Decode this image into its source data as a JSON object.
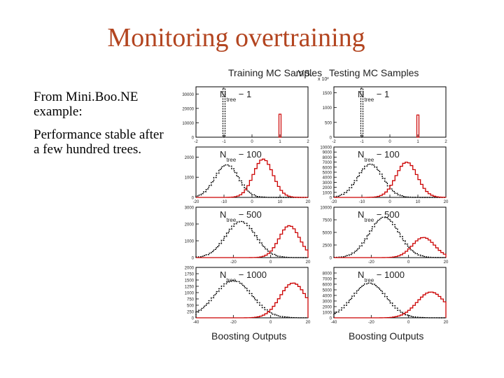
{
  "slide": {
    "title": "Monitoring overtraining",
    "bullets": [
      "From Mini.Boo.NE example:",
      "Performance stable after a few hundred trees."
    ]
  },
  "figure": {
    "left_header": "Training MC Samples",
    "vs_label": ".VS.",
    "right_header": "Testing MC Samples",
    "right_scale_label": "x 10²",
    "xlabel": "Boosting Outputs",
    "colors": {
      "signal": "#cc0000",
      "background": "#000000"
    }
  },
  "chart_data": [
    {
      "type": "bar",
      "title": "N_tree = 1",
      "panel": "training",
      "ntree": "1",
      "row": 0,
      "col": 0,
      "xlim": [
        -2,
        2
      ],
      "xticks": [
        "-2",
        "-1",
        "0",
        "1",
        "2"
      ],
      "ylim": [
        0,
        35000
      ],
      "yticks": [
        "0",
        "10000",
        "20000",
        "30000"
      ],
      "series": [
        {
          "name": "background",
          "kind": "spike",
          "x": -1,
          "height": 34000
        },
        {
          "name": "signal",
          "kind": "spike",
          "x": 1,
          "height": 16000
        }
      ]
    },
    {
      "type": "bar",
      "title": "N_tree = 1",
      "panel": "testing",
      "ntree": "1",
      "row": 0,
      "col": 1,
      "xlim": [
        -2,
        2
      ],
      "xticks": [
        "-2",
        "-1",
        "0",
        "1",
        "2"
      ],
      "ylim": [
        0,
        1700
      ],
      "yticks": [
        "0",
        "500",
        "1000",
        "1500"
      ],
      "series": [
        {
          "name": "background",
          "kind": "spike",
          "x": -1,
          "height": 1650
        },
        {
          "name": "signal",
          "kind": "spike",
          "x": 1,
          "height": 750
        }
      ]
    },
    {
      "type": "area",
      "title": "N_tree = 100",
      "panel": "training",
      "ntree": "100",
      "row": 1,
      "col": 0,
      "xlim": [
        -20,
        20
      ],
      "xticks": [
        "-20",
        "-10",
        "0",
        "10",
        "20"
      ],
      "ylim": [
        0,
        2500
      ],
      "yticks": [
        "0",
        "1000",
        "2000"
      ],
      "series": [
        {
          "name": "background",
          "kind": "gauss",
          "mean": -9,
          "sigma": 4.2,
          "peak": 1620
        },
        {
          "name": "signal",
          "kind": "gauss",
          "mean": 4,
          "sigma": 3.5,
          "peak": 1900
        }
      ]
    },
    {
      "type": "area",
      "title": "N_tree = 100",
      "panel": "testing",
      "ntree": "100",
      "row": 1,
      "col": 1,
      "xlim": [
        -20,
        20
      ],
      "xticks": [
        "-20",
        "-10",
        "0",
        "10",
        "20"
      ],
      "ylim": [
        0,
        10000
      ],
      "yticks": [
        "0",
        "1000",
        "2000",
        "3000",
        "4000",
        "5000",
        "6000",
        "7000",
        "8000",
        "9000",
        "10000"
      ],
      "series": [
        {
          "name": "background",
          "kind": "gauss",
          "mean": -7,
          "sigma": 4.5,
          "peak": 6600
        },
        {
          "name": "signal",
          "kind": "gauss",
          "mean": 6,
          "sigma": 3.8,
          "peak": 7000
        }
      ]
    },
    {
      "type": "area",
      "title": "N_tree = 500",
      "panel": "training",
      "ntree": "500",
      "row": 2,
      "col": 0,
      "xlim": [
        -40,
        20
      ],
      "xticks": [
        "-20",
        "0",
        "20"
      ],
      "ylim": [
        0,
        3000
      ],
      "yticks": [
        "0",
        "1000",
        "2000",
        "3000"
      ],
      "series": [
        {
          "name": "background",
          "kind": "gauss",
          "mean": -16,
          "sigma": 8,
          "peak": 2150
        },
        {
          "name": "signal",
          "kind": "gauss",
          "mean": 10,
          "sigma": 5.5,
          "peak": 1900
        }
      ]
    },
    {
      "type": "area",
      "title": "N_tree = 500",
      "panel": "testing",
      "ntree": "500",
      "row": 2,
      "col": 1,
      "xlim": [
        -40,
        20
      ],
      "xticks": [
        "-20",
        "0",
        "20"
      ],
      "ylim": [
        0,
        10000
      ],
      "yticks": [
        "0",
        "2500",
        "5000",
        "7500",
        "10000"
      ],
      "series": [
        {
          "name": "background",
          "kind": "gauss",
          "mean": -13,
          "sigma": 8,
          "peak": 8000
        },
        {
          "name": "signal",
          "kind": "gauss",
          "mean": 8,
          "sigma": 6,
          "peak": 4000
        }
      ]
    },
    {
      "type": "area",
      "title": "N_tree = 1000",
      "panel": "training",
      "ntree": "1000",
      "row": 3,
      "col": 0,
      "xlim": [
        -40,
        20
      ],
      "xticks": [
        "-40",
        "-20",
        "0",
        "20"
      ],
      "ylim": [
        0,
        2000
      ],
      "yticks": [
        "0",
        "250",
        "500",
        "750",
        "1000",
        "1250",
        "1500",
        "1750",
        "2000"
      ],
      "series": [
        {
          "name": "background",
          "kind": "gauss",
          "mean": -20,
          "sigma": 10,
          "peak": 1480
        },
        {
          "name": "signal",
          "kind": "gauss",
          "mean": 12,
          "sigma": 7,
          "peak": 1380
        }
      ]
    },
    {
      "type": "area",
      "title": "N_tree = 1000",
      "panel": "testing",
      "ntree": "1000",
      "row": 3,
      "col": 1,
      "xlim": [
        -40,
        20
      ],
      "xticks": [
        "-40",
        "-20",
        "0",
        "20"
      ],
      "ylim": [
        0,
        9000
      ],
      "yticks": [
        "0",
        "1000",
        "2000",
        "3000",
        "4000",
        "5000",
        "6000",
        "7000",
        "8000"
      ],
      "series": [
        {
          "name": "background",
          "kind": "gauss",
          "mean": -21,
          "sigma": 9,
          "peak": 6200
        },
        {
          "name": "signal",
          "kind": "gauss",
          "mean": 12,
          "sigma": 7.5,
          "peak": 4600
        }
      ]
    }
  ]
}
